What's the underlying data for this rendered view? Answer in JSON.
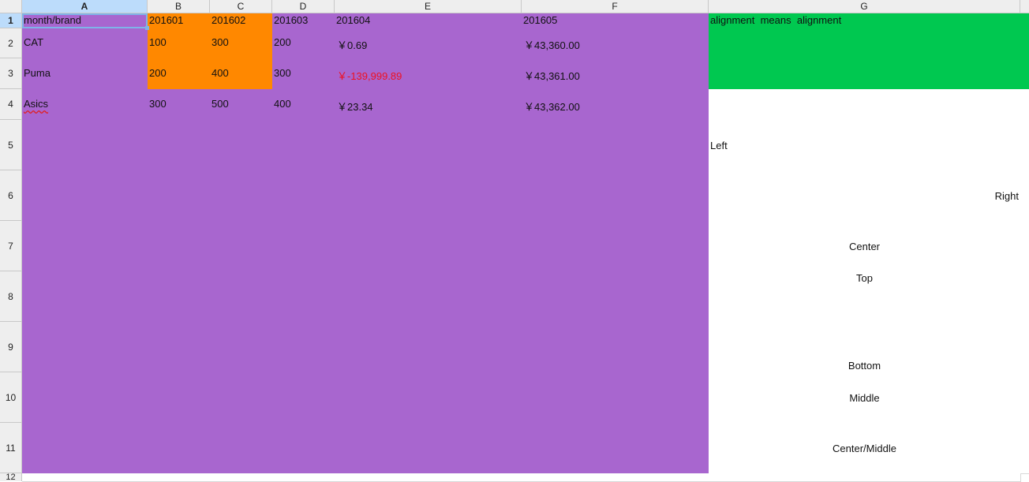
{
  "columns": [
    "A",
    "B",
    "C",
    "D",
    "E",
    "F",
    "G"
  ],
  "rows": [
    "1",
    "2",
    "3",
    "4",
    "5",
    "6",
    "7",
    "8",
    "9",
    "10",
    "11",
    "12"
  ],
  "cells": {
    "A1": "month/brand",
    "B1": "201601",
    "C1": "201602",
    "D1": "201603",
    "E1": "201604",
    "F1": "201605",
    "G1": "alignment  means  alignment",
    "A2": "CAT",
    "B2": "100",
    "C2": "300",
    "D2": "200",
    "E2": "￥0.69",
    "F2": "￥43,360.00",
    "A3": "Puma",
    "B3": "200",
    "C3": "400",
    "D3": "300",
    "E3": "￥-139,999.89",
    "F3": "￥43,361.00",
    "A4": "Asics",
    "B4": "300",
    "C4": "500",
    "D4": "400",
    "E4": "￥23.34",
    "F4": "￥43,362.00",
    "G5": "Left",
    "G6": "Right",
    "G7": "Center",
    "G8": "Top",
    "G9": "Bottom",
    "G10": "Middle",
    "G11": "Center/Middle"
  },
  "colors": {
    "fill_purple": "#a866cf",
    "fill_orange": "#ff8800",
    "fill_green": "#00c850",
    "negative_text": "#ee1122",
    "selection_header": "#bcdcfb"
  },
  "selected_cell": "A1"
}
